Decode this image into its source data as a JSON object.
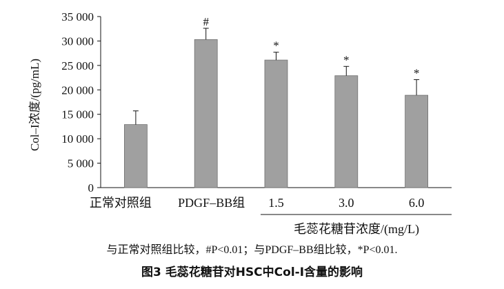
{
  "chart_data": {
    "type": "bar",
    "categories": [
      "正常对照组",
      "PDGF–BB组",
      "1.5",
      "3.0",
      "6.0"
    ],
    "values": [
      12900,
      30300,
      26100,
      22900,
      18900
    ],
    "error": [
      2800,
      2300,
      1600,
      1900,
      3200
    ],
    "significance": [
      "",
      "#",
      "*",
      "*",
      "*"
    ],
    "ylabel": "Col–I浓度/(pg/mL)",
    "ylim": [
      0,
      35000
    ],
    "yticks": [
      0,
      5000,
      10000,
      15000,
      20000,
      25000,
      30000,
      35000
    ],
    "ytick_labels": [
      "0",
      "5 000",
      "10 000",
      "15 000",
      "20 000",
      "25 000",
      "30 000",
      "35 000"
    ],
    "group_label": "毛蕊花糖苷浓度/(mg/L)",
    "grid": false,
    "bar_color": "#a0a0a0"
  },
  "note": "与正常对照组比较，#P<0.01；与PDGF–BB组比较，*P<0.01.",
  "caption": "图3 毛蕊花糖苷对HSC中Col-I含量的影响"
}
